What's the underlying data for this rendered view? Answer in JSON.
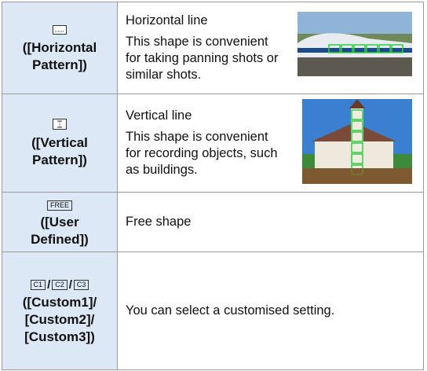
{
  "table": {
    "rows": [
      {
        "label_lines": [
          "([Horizontal",
          "Pattern])"
        ],
        "title": "Horizontal line",
        "description": "This shape is convenient for taking panning shots or similar shots."
      },
      {
        "label_lines": [
          "([Vertical",
          "Pattern])"
        ],
        "title": "Vertical line",
        "description": "This shape is convenient for recording objects, such as buildings."
      },
      {
        "icon": "FREE",
        "label_lines": [
          "([User",
          "Defined])"
        ],
        "description": "Free shape"
      },
      {
        "icons": [
          "C1",
          "C2",
          "C3"
        ],
        "separator": "/",
        "label_lines": [
          "([Custom1]/",
          "[Custom2]/",
          "[Custom3])"
        ],
        "description": "You can select a customised setting."
      }
    ]
  }
}
